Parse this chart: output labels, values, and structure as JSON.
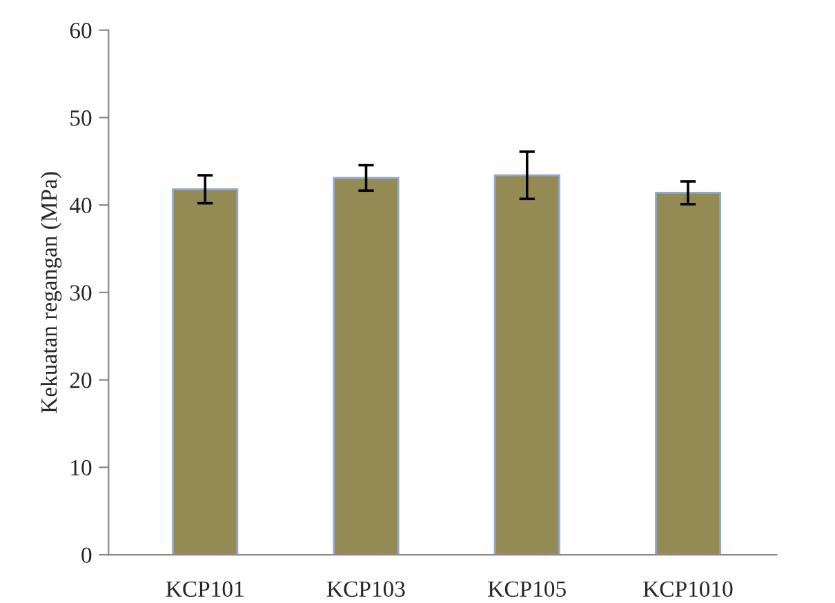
{
  "chart_data": {
    "type": "bar",
    "ylabel": "Kekuatan regangan (MPa)",
    "categories": [
      "KCP101",
      "KCP103",
      "KCP105",
      "KCP1010"
    ],
    "values": [
      41.8,
      43.1,
      43.4,
      41.4
    ],
    "errors": [
      1.6,
      1.45,
      2.7,
      1.3
    ],
    "color": "#948a54",
    "ylim": [
      0,
      60
    ],
    "yticks": [
      0,
      10,
      20,
      30,
      40,
      50,
      60
    ],
    "grid": false,
    "legend": false
  }
}
